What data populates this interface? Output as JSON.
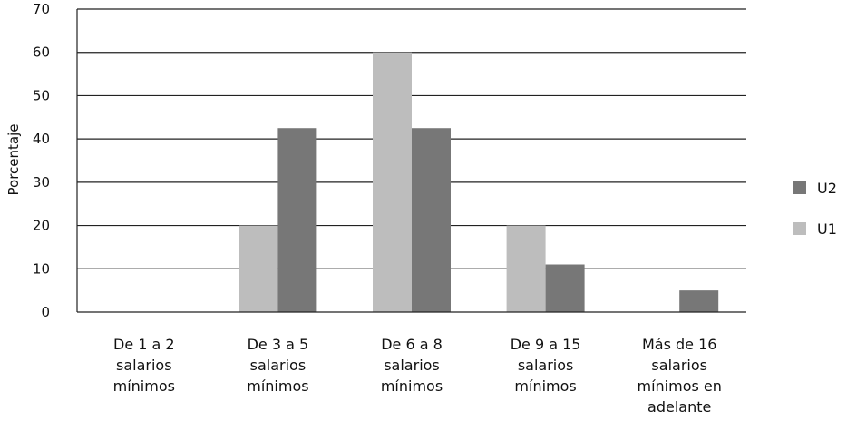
{
  "chart_data": {
    "type": "bar",
    "title": "",
    "xlabel": "",
    "ylabel": "Porcentaje",
    "ylim": [
      0,
      70
    ],
    "yticks": [
      0,
      10,
      20,
      30,
      40,
      50,
      60,
      70
    ],
    "grid": true,
    "legend_position": "right",
    "categories": [
      [
        "De 1 a 2",
        "salarios",
        "mínimos"
      ],
      [
        "De 3 a 5",
        "salarios",
        "mínimos"
      ],
      [
        "De 6 a 8",
        "salarios",
        "mínimos"
      ],
      [
        "De 9 a 15",
        "salarios",
        "mínimos"
      ],
      [
        "Más de 16",
        "salarios",
        "mínimos en",
        "adelante"
      ]
    ],
    "series": [
      {
        "name": "U1",
        "color": "#bdbdbd",
        "values": [
          0,
          20,
          60,
          20,
          0
        ]
      },
      {
        "name": "U2",
        "color": "#777777",
        "values": [
          0,
          42.5,
          42.5,
          11,
          5
        ]
      }
    ],
    "legend_order": [
      "U2",
      "U1"
    ]
  }
}
